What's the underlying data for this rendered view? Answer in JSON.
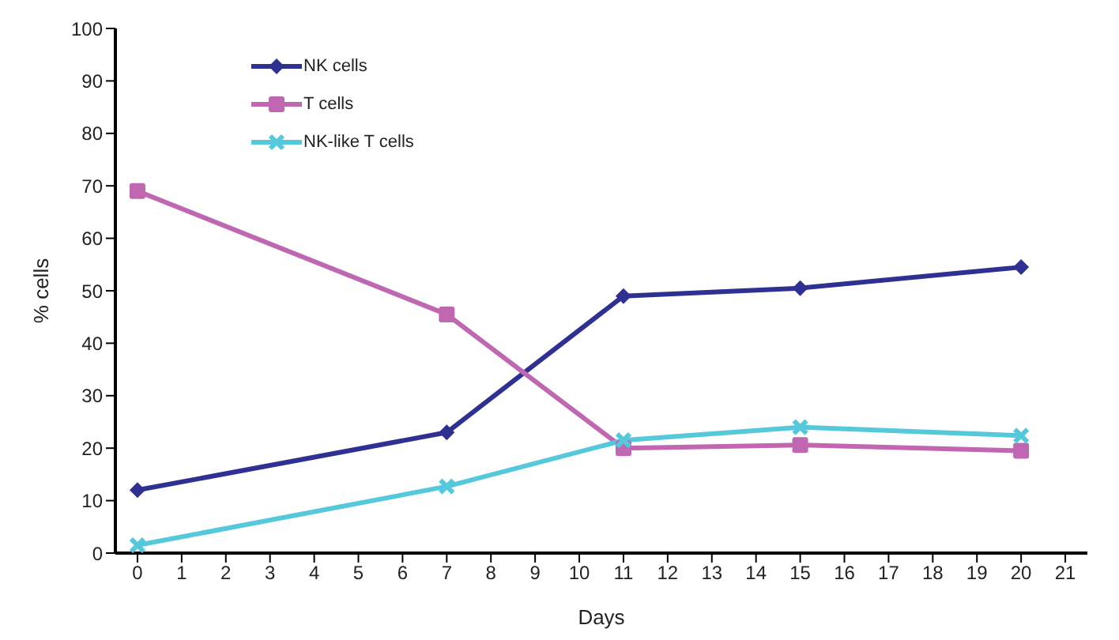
{
  "chart_data": {
    "type": "line",
    "xlabel": "Days",
    "ylabel": "% cells",
    "x": [
      0,
      7,
      11,
      15,
      20
    ],
    "xlim": [
      -0.5,
      21.5
    ],
    "xticks": [
      0,
      1,
      2,
      3,
      4,
      5,
      6,
      7,
      8,
      9,
      10,
      11,
      12,
      13,
      14,
      15,
      16,
      17,
      18,
      19,
      20,
      21
    ],
    "ylim": [
      0,
      100
    ],
    "yticks": [
      0,
      10,
      20,
      30,
      40,
      50,
      60,
      70,
      80,
      90,
      100
    ],
    "grid": false,
    "legend": "top left",
    "line_style": "solid",
    "series": [
      {
        "name": "NK cells",
        "color": "#2e3192",
        "marker": "diamond",
        "values": [
          12,
          23,
          49,
          50.5,
          54.5
        ]
      },
      {
        "name": "T cells",
        "color": "#bf67b0",
        "marker": "square",
        "values": [
          69,
          45.5,
          20,
          20.6,
          19.5
        ]
      },
      {
        "name": "NK-like T cells",
        "color": "#55c8dc",
        "marker": "cross",
        "values": [
          1.5,
          12.7,
          21.5,
          24,
          22.4
        ]
      }
    ]
  }
}
